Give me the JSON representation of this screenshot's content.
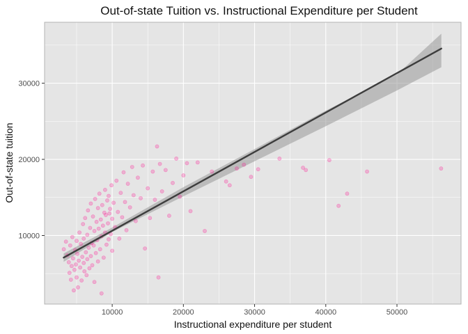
{
  "chart_data": {
    "type": "scatter",
    "title": "Out-of-state Tuition vs. Instructional Expenditure per Student",
    "xlabel": "Instructional expenditure per student",
    "ylabel": "Out-of-state tuition",
    "xlim": [
      500,
      59000
    ],
    "ylim": [
      1000,
      38000
    ],
    "x_ticks": [
      10000,
      20000,
      30000,
      40000,
      50000
    ],
    "y_ticks": [
      10000,
      20000,
      30000
    ],
    "x_tick_labels": [
      "10000",
      "20000",
      "30000",
      "40000",
      "50000"
    ],
    "y_tick_labels": [
      "10000",
      "20000",
      "30000"
    ],
    "grid": true,
    "legend": "none",
    "point_color": "#ff1493",
    "point_alpha": 0.25,
    "fit_line_color": "#3d3d3d",
    "ribbon_color": "#999999",
    "fit_line": {
      "x": [
        3186,
        56233
      ],
      "y": [
        7100,
        34550
      ]
    },
    "confidence_band": {
      "x": [
        3186,
        10000,
        20000,
        30000,
        40000,
        50000,
        56233
      ],
      "lower": [
        6550,
        10450,
        15150,
        19750,
        24350,
        29050,
        32100
      ],
      "upper": [
        7650,
        11050,
        16350,
        21350,
        26400,
        31150,
        36500
      ]
    },
    "points": [
      [
        3200,
        8200
      ],
      [
        3500,
        9200
      ],
      [
        3700,
        7400
      ],
      [
        3900,
        6500
      ],
      [
        4000,
        5100
      ],
      [
        4100,
        8700
      ],
      [
        4200,
        4200
      ],
      [
        4300,
        6000
      ],
      [
        4400,
        9800
      ],
      [
        4500,
        7000
      ],
      [
        4600,
        2800
      ],
      [
        4700,
        5500
      ],
      [
        4800,
        8100
      ],
      [
        4900,
        6200
      ],
      [
        5000,
        4500
      ],
      [
        5000,
        9300
      ],
      [
        5100,
        7600
      ],
      [
        5200,
        3200
      ],
      [
        5300,
        6700
      ],
      [
        5400,
        10400
      ],
      [
        5500,
        5800
      ],
      [
        5600,
        8900
      ],
      [
        5700,
        4100
      ],
      [
        5800,
        7200
      ],
      [
        5900,
        11500
      ],
      [
        6000,
        6400
      ],
      [
        6000,
        9600
      ],
      [
        6100,
        5300
      ],
      [
        6200,
        12300
      ],
      [
        6300,
        7800
      ],
      [
        6400,
        4800
      ],
      [
        6500,
        10100
      ],
      [
        6500,
        6900
      ],
      [
        6600,
        13300
      ],
      [
        6700,
        8400
      ],
      [
        6800,
        5700
      ],
      [
        6900,
        11000
      ],
      [
        7000,
        7300
      ],
      [
        7000,
        14200
      ],
      [
        7100,
        9000
      ],
      [
        7200,
        6100
      ],
      [
        7300,
        12500
      ],
      [
        7400,
        8700
      ],
      [
        7500,
        3900
      ],
      [
        7500,
        10600
      ],
      [
        7600,
        14800
      ],
      [
        7700,
        7700
      ],
      [
        7800,
        11800
      ],
      [
        7900,
        9400
      ],
      [
        8000,
        6600
      ],
      [
        8000,
        13600
      ],
      [
        8100,
        10900
      ],
      [
        8200,
        15500
      ],
      [
        8300,
        8200
      ],
      [
        8400,
        12100
      ],
      [
        8500,
        2400
      ],
      [
        8500,
        9900
      ],
      [
        8600,
        14000
      ],
      [
        8700,
        11300
      ],
      [
        8800,
        7100
      ],
      [
        8900,
        13000
      ],
      [
        9000,
        16000
      ],
      [
        9000,
        10400
      ],
      [
        9100,
        12700
      ],
      [
        9200,
        8800
      ],
      [
        9300,
        14600
      ],
      [
        9400,
        11600
      ],
      [
        9500,
        9500
      ],
      [
        9500,
        15200
      ],
      [
        9600,
        12900
      ],
      [
        9700,
        13500
      ],
      [
        9800,
        10200
      ],
      [
        9900,
        16600
      ],
      [
        10000,
        12200
      ],
      [
        10000,
        8000
      ],
      [
        10200,
        14300
      ],
      [
        10400,
        11100
      ],
      [
        10600,
        17200
      ],
      [
        10800,
        13100
      ],
      [
        11000,
        9600
      ],
      [
        11200,
        15600
      ],
      [
        11400,
        12400
      ],
      [
        11600,
        18300
      ],
      [
        11800,
        14400
      ],
      [
        12000,
        10700
      ],
      [
        12200,
        16800
      ],
      [
        12500,
        13700
      ],
      [
        12800,
        19000
      ],
      [
        13000,
        15300
      ],
      [
        13300,
        11900
      ],
      [
        13600,
        17600
      ],
      [
        14000,
        14900
      ],
      [
        14300,
        19200
      ],
      [
        14600,
        8300
      ],
      [
        15000,
        16200
      ],
      [
        15300,
        12300
      ],
      [
        15700,
        18400
      ],
      [
        16000,
        14700
      ],
      [
        16300,
        21700
      ],
      [
        16500,
        4500
      ],
      [
        16700,
        19400
      ],
      [
        17000,
        15800
      ],
      [
        17500,
        18600
      ],
      [
        18000,
        12600
      ],
      [
        18500,
        16900
      ],
      [
        19000,
        20100
      ],
      [
        19500,
        15100
      ],
      [
        20000,
        17900
      ],
      [
        20500,
        19500
      ],
      [
        21000,
        13200
      ],
      [
        22000,
        19600
      ],
      [
        23000,
        10600
      ],
      [
        24000,
        18400
      ],
      [
        26000,
        17100
      ],
      [
        26500,
        16600
      ],
      [
        27500,
        18800
      ],
      [
        28500,
        19300
      ],
      [
        29500,
        17700
      ],
      [
        30500,
        18700
      ],
      [
        33500,
        20100
      ],
      [
        36800,
        18900
      ],
      [
        37200,
        18600
      ],
      [
        40500,
        19900
      ],
      [
        41800,
        13900
      ],
      [
        43000,
        15500
      ],
      [
        45800,
        18400
      ],
      [
        56200,
        18800
      ]
    ]
  }
}
